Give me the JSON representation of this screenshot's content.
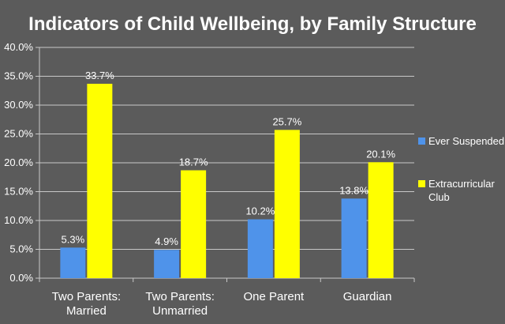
{
  "chart_data": {
    "type": "bar",
    "title": "Indicators of Child Wellbeing, by Family Structure",
    "xlabel": "",
    "ylabel": "",
    "categories": [
      [
        "Two Parents:",
        "Married"
      ],
      [
        "Two Parents:",
        "Unmarried"
      ],
      [
        "One Parent"
      ],
      [
        "Guardian"
      ]
    ],
    "series": [
      {
        "name": "Ever Suspended",
        "values": [
          5.3,
          4.9,
          10.2,
          13.8
        ],
        "color": "#4f93ea",
        "labels": [
          "5.3%",
          "4.9%",
          "10.2%",
          "13.8%"
        ]
      },
      {
        "name": "Extracurricular Club",
        "values": [
          33.7,
          18.7,
          25.7,
          20.1
        ],
        "color": "#ffff00",
        "labels": [
          "33.7%",
          "18.7%",
          "25.7%",
          "20.1%"
        ]
      }
    ],
    "legend_lines": [
      [
        "Ever Suspended"
      ],
      [
        "Extracurricular",
        "Club"
      ]
    ],
    "ylim": [
      0,
      40
    ],
    "yticks": [
      0,
      5,
      10,
      15,
      20,
      25,
      30,
      35,
      40
    ],
    "ytick_labels": [
      "0.0%",
      "5.0%",
      "10.0%",
      "15.0%",
      "20.0%",
      "25.0%",
      "30.0%",
      "35.0%",
      "40.0%"
    ],
    "grid": true,
    "legend_position": "right",
    "colors": {
      "background": "#5b5b5b",
      "axis": "#c8c8c8",
      "grid": "#c8c8c8",
      "text": "#ffffff"
    }
  }
}
